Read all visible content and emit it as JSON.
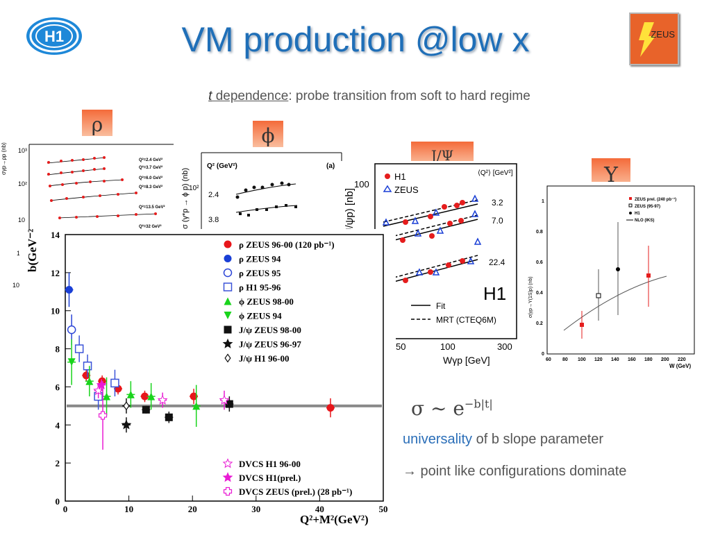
{
  "title": "VM production @low x",
  "subtitle": {
    "t": "t",
    "dependence": " dependence",
    "rest": ": probe transition from soft to hard regime"
  },
  "logos": {
    "h1": "H1",
    "zeus": "ZEUS"
  },
  "badges": {
    "rho": "ρ",
    "phi": "ϕ",
    "jpsi": "J/Ψ",
    "upsilon": "Υ"
  },
  "rho_panel": {
    "yaxis_label": "σγp→ρp (nb)",
    "ticks": [
      "10³",
      "10²",
      "10",
      "1",
      "10"
    ],
    "labels": [
      "Q²=2.4 GeV²",
      "Q²=3.7 GeV²",
      "Q²=6.0 GeV²",
      "Q²=8.3 GeV²",
      "Q²=13.5 GeV²",
      "Q²=32 GeV²"
    ]
  },
  "phi_panel": {
    "yaxis_label": "σ (γ*p → ϕ p) (nb)",
    "q2_label": "Q² (GeV²)",
    "panel_tag": "(a)",
    "tick": "10²",
    "q_values": [
      "2.4",
      "3.8"
    ]
  },
  "jpsi_panel": {
    "yaxis_label": "J/ψp) [nb]",
    "ytick": "100",
    "legend": [
      "H1",
      "ZEUS"
    ],
    "q2_header": "⟨Q²⟩ [GeV²]",
    "q2_values": [
      "3.2",
      "7.0",
      "22.4"
    ],
    "tag": "H1",
    "lines": [
      "Fit",
      "MRT (CTEQ6M)"
    ],
    "xticks": [
      "50",
      "100",
      "300"
    ],
    "xlabel": "Wγp [GeV]"
  },
  "ups_panel": {
    "yaxis_label": "σ(γp→Υ(1S)p) (nb)",
    "yticks": [
      "0",
      "0.2",
      "0.4",
      "0.6",
      "0.8",
      "1"
    ],
    "xticks": [
      "60",
      "80",
      "100",
      "120",
      "140",
      "160",
      "180",
      "200",
      "220"
    ],
    "xlabel": "W (GeV)",
    "legend": [
      "ZEUS prel. (240 pb⁻¹)",
      "ZEUS (95-97)",
      "H1",
      "NLO (IKS)"
    ]
  },
  "chart_data": {
    "type": "scatter",
    "ylabel": "b(GeV⁻²)",
    "xlabel": "Q²+M²(GeV²)",
    "xlim": [
      0,
      50
    ],
    "ylim": [
      0,
      14
    ],
    "xticks": [
      0,
      10,
      20,
      30,
      40,
      50
    ],
    "yticks": [
      0,
      2,
      4,
      6,
      8,
      10,
      12,
      14
    ],
    "reference_line": 5.0,
    "series": [
      {
        "name": "ρ ZEUS 96-00 (120 pb⁻¹)",
        "color": "#e8161b",
        "marker": "circle-filled",
        "points": [
          [
            3.3,
            6.6,
            0.3
          ],
          [
            5.8,
            6.3,
            0.3
          ],
          [
            8.3,
            5.9,
            0.3
          ],
          [
            12.5,
            5.5,
            0.3
          ],
          [
            20.2,
            5.5,
            0.4
          ],
          [
            41.7,
            4.9,
            0.5
          ]
        ]
      },
      {
        "name": "ρ ZEUS 94",
        "color": "#1a3fd6",
        "marker": "circle-filled",
        "points": [
          [
            0.6,
            11.1,
            0.9
          ]
        ]
      },
      {
        "name": "ρ ZEUS 95",
        "color": "#2b44d6",
        "marker": "circle-open",
        "points": [
          [
            1.0,
            9.0,
            0.8
          ]
        ]
      },
      {
        "name": "ρ H1 95-96",
        "color": "#3b53d8",
        "marker": "square-open",
        "points": [
          [
            2.2,
            8.0,
            0.7
          ],
          [
            3.5,
            7.1,
            0.6
          ],
          [
            5.2,
            5.5,
            0.7
          ],
          [
            7.8,
            6.2,
            0.7
          ]
        ]
      },
      {
        "name": "ϕ ZEUS 98-00",
        "color": "#19d41c",
        "marker": "triangle-up",
        "points": [
          [
            3.8,
            6.3,
            0.8
          ],
          [
            6.5,
            5.5,
            1.0
          ],
          [
            10.3,
            5.6,
            0.7
          ],
          [
            13.5,
            5.5,
            0.7
          ],
          [
            20.6,
            5.0,
            1.1
          ]
        ]
      },
      {
        "name": "ϕ ZEUS 94",
        "color": "#19d41c",
        "marker": "triangle-down",
        "points": [
          [
            1.0,
            7.3,
            1.2
          ]
        ]
      },
      {
        "name": "J/ψ ZEUS 98-00",
        "color": "#111111",
        "marker": "square-filled",
        "points": [
          [
            12.7,
            4.8,
            0.2
          ],
          [
            16.3,
            4.4,
            0.3
          ],
          [
            25.8,
            5.1,
            0.4
          ]
        ]
      },
      {
        "name": "J/ψ ZEUS 96-97",
        "color": "#111111",
        "marker": "star",
        "points": [
          [
            9.6,
            4.0,
            0.4
          ]
        ]
      },
      {
        "name": "J/ψ H1 96-00",
        "color": "#111111",
        "marker": "diamond-open",
        "points": [
          [
            9.6,
            5.0,
            0.4
          ]
        ]
      },
      {
        "name": "DVCS H1 96-00",
        "color": "#e91bd4",
        "marker": "star-open",
        "points": [
          [
            5.2,
            5.8,
            0.4
          ],
          [
            15.3,
            5.3,
            0.4
          ],
          [
            25.0,
            5.3,
            0.5
          ]
        ]
      },
      {
        "name": "DVCS H1(prel.)",
        "color": "#e91bd4",
        "marker": "star",
        "points": [
          [
            5.7,
            6.1,
            0.3
          ]
        ]
      },
      {
        "name": "DVCS ZEUS (prel.) (28 pb⁻¹)",
        "color": "#e91bd4",
        "marker": "cross-open",
        "points": [
          [
            5.9,
            4.5,
            1.8
          ]
        ]
      }
    ]
  },
  "sigma_text": "σ ~ e",
  "sigma_exp": "−b|t|",
  "universality_word": "universality",
  "universality_rest": " of b slope parameter",
  "point_text": "→ point like configurations dominate"
}
